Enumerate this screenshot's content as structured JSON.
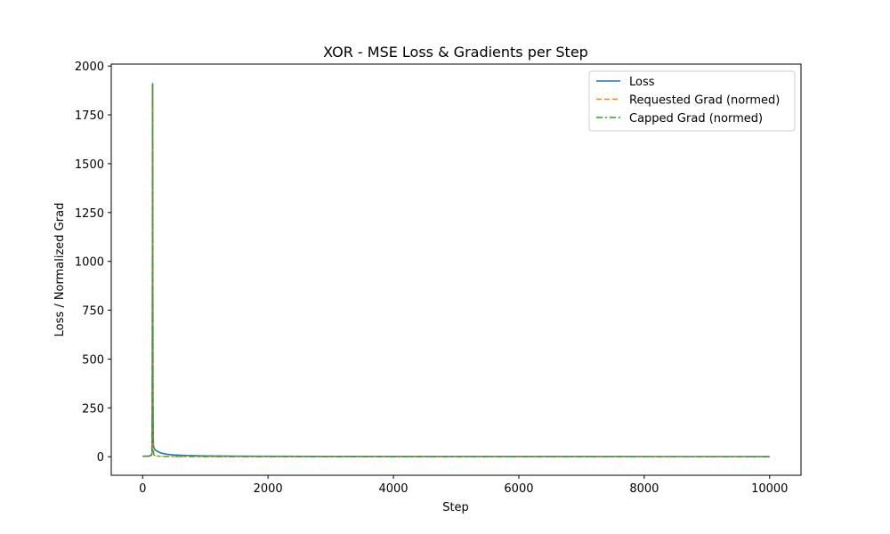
{
  "chart_data": {
    "type": "line",
    "title": "XOR - MSE Loss & Gradients per Step",
    "xlabel": "Step",
    "ylabel": "Loss / Normalized Grad",
    "xlim": [
      -500,
      10500
    ],
    "ylim": [
      -95,
      2010
    ],
    "xticks": [
      0,
      2000,
      4000,
      6000,
      8000,
      10000
    ],
    "xtick_labels": [
      "0",
      "2000",
      "4000",
      "6000",
      "8000",
      "10000"
    ],
    "yticks": [
      0,
      250,
      500,
      750,
      1000,
      1250,
      1500,
      1750,
      2000
    ],
    "ytick_labels": [
      "0",
      "250",
      "500",
      "750",
      "1000",
      "1250",
      "1500",
      "1750",
      "2000"
    ],
    "grid": false,
    "legend_position": "top-right",
    "series": [
      {
        "name": "Loss",
        "color": "#1f77b4",
        "style": "solid",
        "x": [
          0,
          100,
          140,
          150,
          155,
          160,
          165,
          170,
          175,
          180,
          200,
          250,
          300,
          400,
          500,
          700,
          1000,
          1500,
          2000,
          3000,
          5000,
          7000,
          10000
        ],
        "y": [
          2,
          3,
          8,
          20,
          450,
          1910,
          300,
          80,
          55,
          45,
          35,
          25,
          18,
          12,
          9,
          6,
          4,
          3,
          2,
          1.5,
          1,
          0.8,
          0.6
        ]
      },
      {
        "name": "Requested Grad (normed)",
        "color": "#ff7f0e",
        "style": "dashed",
        "x": [
          0,
          100,
          140,
          150,
          155,
          160,
          165,
          170,
          175,
          180,
          200,
          250,
          300,
          500,
          1000,
          2000,
          5000,
          10000
        ],
        "y": [
          2,
          3,
          6,
          15,
          400,
          1905,
          200,
          40,
          20,
          10,
          5,
          3,
          2,
          1,
          0.5,
          0.3,
          0.2,
          0.1
        ]
      },
      {
        "name": "Capped Grad (normed)",
        "color": "#2ca02c",
        "style": "dashdot",
        "x": [
          0,
          100,
          140,
          150,
          155,
          160,
          165,
          170,
          175,
          180,
          200,
          250,
          300,
          500,
          1000,
          2000,
          5000,
          10000
        ],
        "y": [
          2,
          3,
          6,
          15,
          400,
          1910,
          200,
          40,
          20,
          10,
          5,
          3,
          2,
          1,
          0.5,
          0.3,
          0.2,
          0.1
        ]
      }
    ]
  }
}
